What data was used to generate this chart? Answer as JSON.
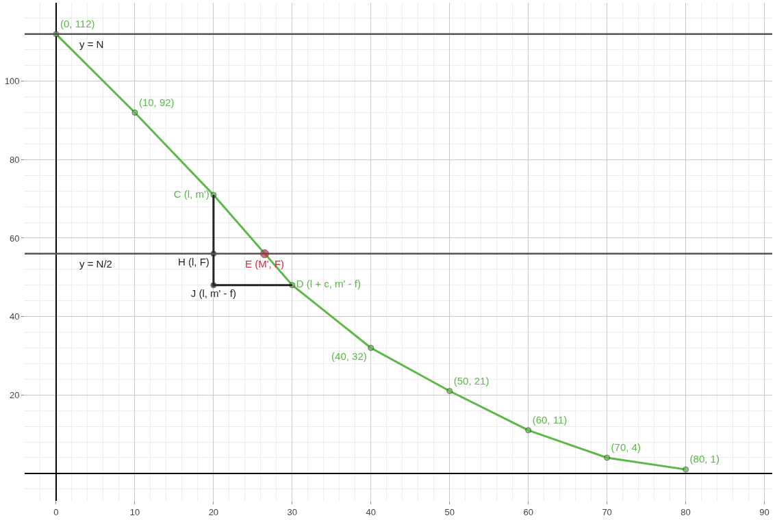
{
  "chart_data": {
    "type": "line",
    "xlim": [
      -4,
      91
    ],
    "ylim": [
      -7,
      120
    ],
    "xticks": [
      0,
      10,
      20,
      30,
      40,
      50,
      60,
      70,
      80,
      90
    ],
    "yticks": [
      20,
      40,
      60,
      80,
      100
    ],
    "grid": true,
    "marker": "circle",
    "line_style": "solid",
    "series": [
      {
        "color": "#5cb848",
        "x": [
          0,
          10,
          20,
          30,
          40,
          50,
          60,
          70,
          80
        ],
        "values": [
          112,
          92,
          71,
          48,
          32,
          21,
          11,
          4,
          1
        ],
        "value_labels": [
          "(0, 112)",
          "(10, 92)",
          "C (l, m')",
          "D (l + c, m' - f)",
          "(40, 32)",
          "(50, 21)",
          "(60, 11)",
          "(70, 4)",
          "(80, 1)"
        ]
      },
      {
        "color": "#222222",
        "x": [
          20,
          20,
          20,
          30
        ],
        "values": [
          71,
          56,
          48,
          48
        ],
        "value_labels": [
          null,
          "H (l, F)",
          "J (l, m' - f)",
          null
        ]
      },
      {
        "type": "scatter",
        "color": "#d7263d",
        "x": [
          26.5
        ],
        "values": [
          56
        ],
        "value_labels": [
          "E (M', F)"
        ]
      }
    ],
    "ref_lines": [
      {
        "axis": "y",
        "value": 112,
        "label": "y = N",
        "color": "#555555"
      },
      {
        "axis": "y",
        "value": 56,
        "label": "y = N/2",
        "color": "#555555"
      }
    ]
  }
}
